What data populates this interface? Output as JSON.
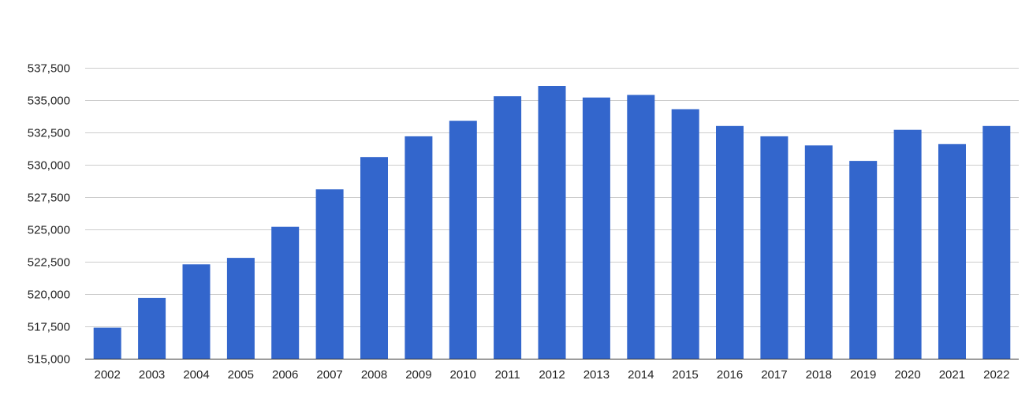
{
  "colors": {
    "bar": "#3366cc",
    "grid": "#cccccc",
    "baseline": "#333333",
    "text": "#222222"
  },
  "chart_data": {
    "type": "bar",
    "title": "",
    "xlabel": "",
    "ylabel": "",
    "ylim": [
      515000,
      537500
    ],
    "y_ticks": [
      515000,
      517500,
      520000,
      522500,
      525000,
      527500,
      530000,
      532500,
      535000,
      537500
    ],
    "y_tick_labels": [
      "515,000",
      "517,500",
      "520,000",
      "522,500",
      "525,000",
      "527,500",
      "530,000",
      "532,500",
      "535,000",
      "537,500"
    ],
    "grid": true,
    "legend": "none",
    "categories": [
      "2002",
      "2003",
      "2004",
      "2005",
      "2006",
      "2007",
      "2008",
      "2009",
      "2010",
      "2011",
      "2012",
      "2013",
      "2014",
      "2015",
      "2016",
      "2017",
      "2018",
      "2019",
      "2020",
      "2021",
      "2022"
    ],
    "values": [
      517400,
      519700,
      522300,
      522800,
      525200,
      528100,
      530600,
      532200,
      533400,
      535300,
      536100,
      535200,
      535400,
      534300,
      533000,
      532200,
      531500,
      530300,
      532700,
      531600,
      533000
    ]
  }
}
